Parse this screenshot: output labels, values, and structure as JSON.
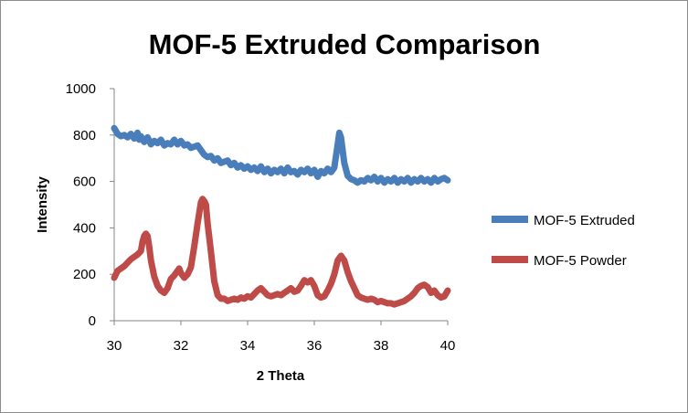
{
  "chart_data": {
    "type": "line",
    "title": "MOF-5 Extruded Comparison",
    "xlabel": "2 Theta",
    "ylabel": "Intensity",
    "xlim": [
      30,
      40
    ],
    "ylim": [
      0,
      1000
    ],
    "x_ticks": [
      30,
      32,
      34,
      36,
      38,
      40
    ],
    "y_ticks": [
      0,
      200,
      400,
      600,
      800,
      1000
    ],
    "grid": false,
    "legend_position": "right",
    "series": [
      {
        "name": "MOF-5 Extruded",
        "color": "#4a7ebb",
        "points": [
          [
            30.0,
            830
          ],
          [
            30.1,
            805
          ],
          [
            30.2,
            795
          ],
          [
            30.3,
            800
          ],
          [
            30.4,
            790
          ],
          [
            30.5,
            805
          ],
          [
            30.6,
            785
          ],
          [
            30.7,
            810
          ],
          [
            30.75,
            780
          ],
          [
            30.8,
            795
          ],
          [
            30.9,
            770
          ],
          [
            31.0,
            790
          ],
          [
            31.1,
            760
          ],
          [
            31.2,
            775
          ],
          [
            31.3,
            765
          ],
          [
            31.4,
            780
          ],
          [
            31.5,
            755
          ],
          [
            31.6,
            765
          ],
          [
            31.7,
            760
          ],
          [
            31.8,
            780
          ],
          [
            31.9,
            760
          ],
          [
            32.0,
            775
          ],
          [
            32.1,
            755
          ],
          [
            32.2,
            760
          ],
          [
            32.3,
            745
          ],
          [
            32.4,
            750
          ],
          [
            32.5,
            755
          ],
          [
            32.6,
            735
          ],
          [
            32.7,
            715
          ],
          [
            32.8,
            705
          ],
          [
            32.9,
            710
          ],
          [
            33.0,
            690
          ],
          [
            33.1,
            700
          ],
          [
            33.2,
            680
          ],
          [
            33.3,
            685
          ],
          [
            33.4,
            690
          ],
          [
            33.5,
            670
          ],
          [
            33.6,
            680
          ],
          [
            33.7,
            660
          ],
          [
            33.8,
            670
          ],
          [
            33.9,
            655
          ],
          [
            34.0,
            665
          ],
          [
            34.1,
            650
          ],
          [
            34.2,
            660
          ],
          [
            34.3,
            645
          ],
          [
            34.4,
            665
          ],
          [
            34.5,
            640
          ],
          [
            34.6,
            655
          ],
          [
            34.7,
            635
          ],
          [
            34.8,
            650
          ],
          [
            34.9,
            640
          ],
          [
            35.0,
            655
          ],
          [
            35.1,
            635
          ],
          [
            35.2,
            660
          ],
          [
            35.3,
            640
          ],
          [
            35.4,
            645
          ],
          [
            35.5,
            630
          ],
          [
            35.6,
            650
          ],
          [
            35.7,
            640
          ],
          [
            35.8,
            655
          ],
          [
            35.9,
            635
          ],
          [
            36.0,
            650
          ],
          [
            36.1,
            620
          ],
          [
            36.2,
            645
          ],
          [
            36.3,
            635
          ],
          [
            36.4,
            655
          ],
          [
            36.5,
            640
          ],
          [
            36.6,
            660
          ],
          [
            36.7,
            760
          ],
          [
            36.75,
            810
          ],
          [
            36.8,
            790
          ],
          [
            36.9,
            680
          ],
          [
            37.0,
            625
          ],
          [
            37.1,
            610
          ],
          [
            37.2,
            605
          ],
          [
            37.3,
            595
          ],
          [
            37.4,
            605
          ],
          [
            37.5,
            600
          ],
          [
            37.6,
            615
          ],
          [
            37.7,
            605
          ],
          [
            37.8,
            620
          ],
          [
            37.9,
            600
          ],
          [
            38.0,
            615
          ],
          [
            38.1,
            595
          ],
          [
            38.2,
            610
          ],
          [
            38.3,
            600
          ],
          [
            38.4,
            615
          ],
          [
            38.5,
            595
          ],
          [
            38.6,
            610
          ],
          [
            38.7,
            600
          ],
          [
            38.8,
            615
          ],
          [
            38.9,
            595
          ],
          [
            39.0,
            610
          ],
          [
            39.1,
            600
          ],
          [
            39.2,
            615
          ],
          [
            39.3,
            600
          ],
          [
            39.4,
            610
          ],
          [
            39.5,
            595
          ],
          [
            39.6,
            615
          ],
          [
            39.7,
            600
          ],
          [
            39.8,
            610
          ],
          [
            39.9,
            615
          ],
          [
            40.0,
            605
          ]
        ]
      },
      {
        "name": "MOF-5 Powder",
        "color": "#be4b48",
        "points": [
          [
            30.0,
            185
          ],
          [
            30.1,
            215
          ],
          [
            30.2,
            225
          ],
          [
            30.3,
            235
          ],
          [
            30.4,
            250
          ],
          [
            30.5,
            265
          ],
          [
            30.6,
            275
          ],
          [
            30.7,
            285
          ],
          [
            30.8,
            300
          ],
          [
            30.85,
            340
          ],
          [
            30.9,
            365
          ],
          [
            30.95,
            375
          ],
          [
            31.0,
            365
          ],
          [
            31.05,
            320
          ],
          [
            31.1,
            260
          ],
          [
            31.2,
            190
          ],
          [
            31.3,
            150
          ],
          [
            31.4,
            130
          ],
          [
            31.5,
            120
          ],
          [
            31.6,
            140
          ],
          [
            31.7,
            180
          ],
          [
            31.8,
            195
          ],
          [
            31.9,
            215
          ],
          [
            31.95,
            225
          ],
          [
            32.0,
            205
          ],
          [
            32.1,
            185
          ],
          [
            32.2,
            200
          ],
          [
            32.3,
            230
          ],
          [
            32.4,
            320
          ],
          [
            32.5,
            420
          ],
          [
            32.6,
            510
          ],
          [
            32.65,
            525
          ],
          [
            32.7,
            515
          ],
          [
            32.75,
            500
          ],
          [
            32.8,
            420
          ],
          [
            32.9,
            300
          ],
          [
            33.0,
            170
          ],
          [
            33.1,
            110
          ],
          [
            33.2,
            95
          ],
          [
            33.3,
            95
          ],
          [
            33.4,
            85
          ],
          [
            33.5,
            90
          ],
          [
            33.6,
            95
          ],
          [
            33.7,
            90
          ],
          [
            33.8,
            100
          ],
          [
            33.9,
            95
          ],
          [
            34.0,
            105
          ],
          [
            34.1,
            100
          ],
          [
            34.2,
            115
          ],
          [
            34.3,
            130
          ],
          [
            34.4,
            140
          ],
          [
            34.5,
            125
          ],
          [
            34.6,
            110
          ],
          [
            34.7,
            105
          ],
          [
            34.8,
            110
          ],
          [
            34.9,
            115
          ],
          [
            35.0,
            110
          ],
          [
            35.1,
            120
          ],
          [
            35.2,
            130
          ],
          [
            35.3,
            140
          ],
          [
            35.4,
            125
          ],
          [
            35.5,
            130
          ],
          [
            35.6,
            150
          ],
          [
            35.7,
            175
          ],
          [
            35.8,
            165
          ],
          [
            35.9,
            175
          ],
          [
            36.0,
            150
          ],
          [
            36.1,
            110
          ],
          [
            36.2,
            100
          ],
          [
            36.3,
            105
          ],
          [
            36.4,
            130
          ],
          [
            36.5,
            160
          ],
          [
            36.6,
            200
          ],
          [
            36.7,
            260
          ],
          [
            36.8,
            280
          ],
          [
            36.9,
            260
          ],
          [
            37.0,
            210
          ],
          [
            37.1,
            170
          ],
          [
            37.2,
            140
          ],
          [
            37.3,
            110
          ],
          [
            37.4,
            100
          ],
          [
            37.5,
            95
          ],
          [
            37.6,
            90
          ],
          [
            37.7,
            95
          ],
          [
            37.8,
            90
          ],
          [
            37.9,
            80
          ],
          [
            38.0,
            85
          ],
          [
            38.1,
            80
          ],
          [
            38.2,
            75
          ],
          [
            38.3,
            75
          ],
          [
            38.4,
            70
          ],
          [
            38.5,
            75
          ],
          [
            38.6,
            80
          ],
          [
            38.7,
            85
          ],
          [
            38.8,
            95
          ],
          [
            38.9,
            105
          ],
          [
            39.0,
            120
          ],
          [
            39.1,
            140
          ],
          [
            39.2,
            150
          ],
          [
            39.3,
            155
          ],
          [
            39.4,
            145
          ],
          [
            39.5,
            120
          ],
          [
            39.6,
            130
          ],
          [
            39.7,
            110
          ],
          [
            39.8,
            100
          ],
          [
            39.9,
            105
          ],
          [
            40.0,
            130
          ]
        ]
      }
    ]
  }
}
